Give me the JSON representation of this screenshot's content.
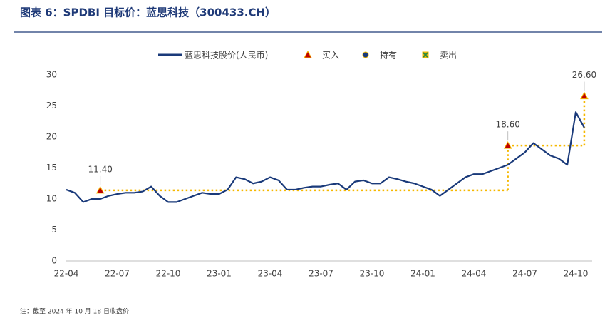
{
  "title": "图表 6：SPDBI 目标价：蓝思科技（300433.CH）",
  "note": "注：截至 2024 年 10 月 18 日收盘价",
  "chart_data": {
    "type": "line",
    "categories": [
      "22-04",
      null,
      null,
      null,
      null,
      null,
      "22-07",
      null,
      null,
      null,
      null,
      null,
      "22-10",
      null,
      null,
      null,
      null,
      null,
      "23-01",
      null,
      null,
      null,
      null,
      null,
      "23-04",
      null,
      null,
      null,
      null,
      null,
      "23-07",
      null,
      null,
      null,
      null,
      null,
      "23-10",
      null,
      null,
      null,
      null,
      null,
      "24-01",
      null,
      null,
      null,
      null,
      null,
      "24-04",
      null,
      null,
      null,
      null,
      null,
      "24-07",
      null,
      null,
      null,
      null,
      null,
      "24-10",
      null
    ],
    "series": [
      {
        "name": "蓝思科技股价(人民币)",
        "color": "#1a3a7a",
        "values": [
          11.5,
          11,
          9.5,
          10,
          10,
          10.5,
          10.8,
          11,
          11,
          11.2,
          12,
          10.5,
          9.5,
          9.5,
          10,
          10.5,
          11,
          10.8,
          10.8,
          11.5,
          13.5,
          13.2,
          12.5,
          12.8,
          13.5,
          13,
          11.5,
          11.5,
          11.8,
          12,
          12,
          12.3,
          12.5,
          11.5,
          12.8,
          13,
          12.5,
          12.5,
          13.5,
          13.2,
          12.8,
          12.5,
          12,
          11.5,
          10.5,
          11.5,
          12.5,
          13.5,
          14,
          14,
          14.5,
          15,
          15.5,
          16.5,
          17.5,
          19,
          18,
          17,
          16.5,
          15.5,
          24,
          21.5
        ]
      }
    ],
    "targets": {
      "x": [
        4,
        52,
        61
      ],
      "values": [
        11.4,
        18.6,
        26.6
      ],
      "value_labels": [
        "11.40",
        "18.60",
        "26.60"
      ],
      "rating": [
        "买入",
        "买入",
        "买入"
      ],
      "color": "#f5b800"
    },
    "ratings_legend": [
      {
        "name": "买入",
        "color": "#c00000",
        "border": "#f5b800",
        "shape": "triangle"
      },
      {
        "name": "持有",
        "color": "#1a3a7a",
        "border": "#f5b800",
        "shape": "circle"
      },
      {
        "name": "卖出",
        "color": "#2e8b3e",
        "border": "#f5b800",
        "shape": "cross"
      }
    ],
    "ylim": [
      0,
      30
    ],
    "yticks": [
      0,
      5,
      10,
      15,
      20,
      25,
      30
    ],
    "grid": false
  }
}
